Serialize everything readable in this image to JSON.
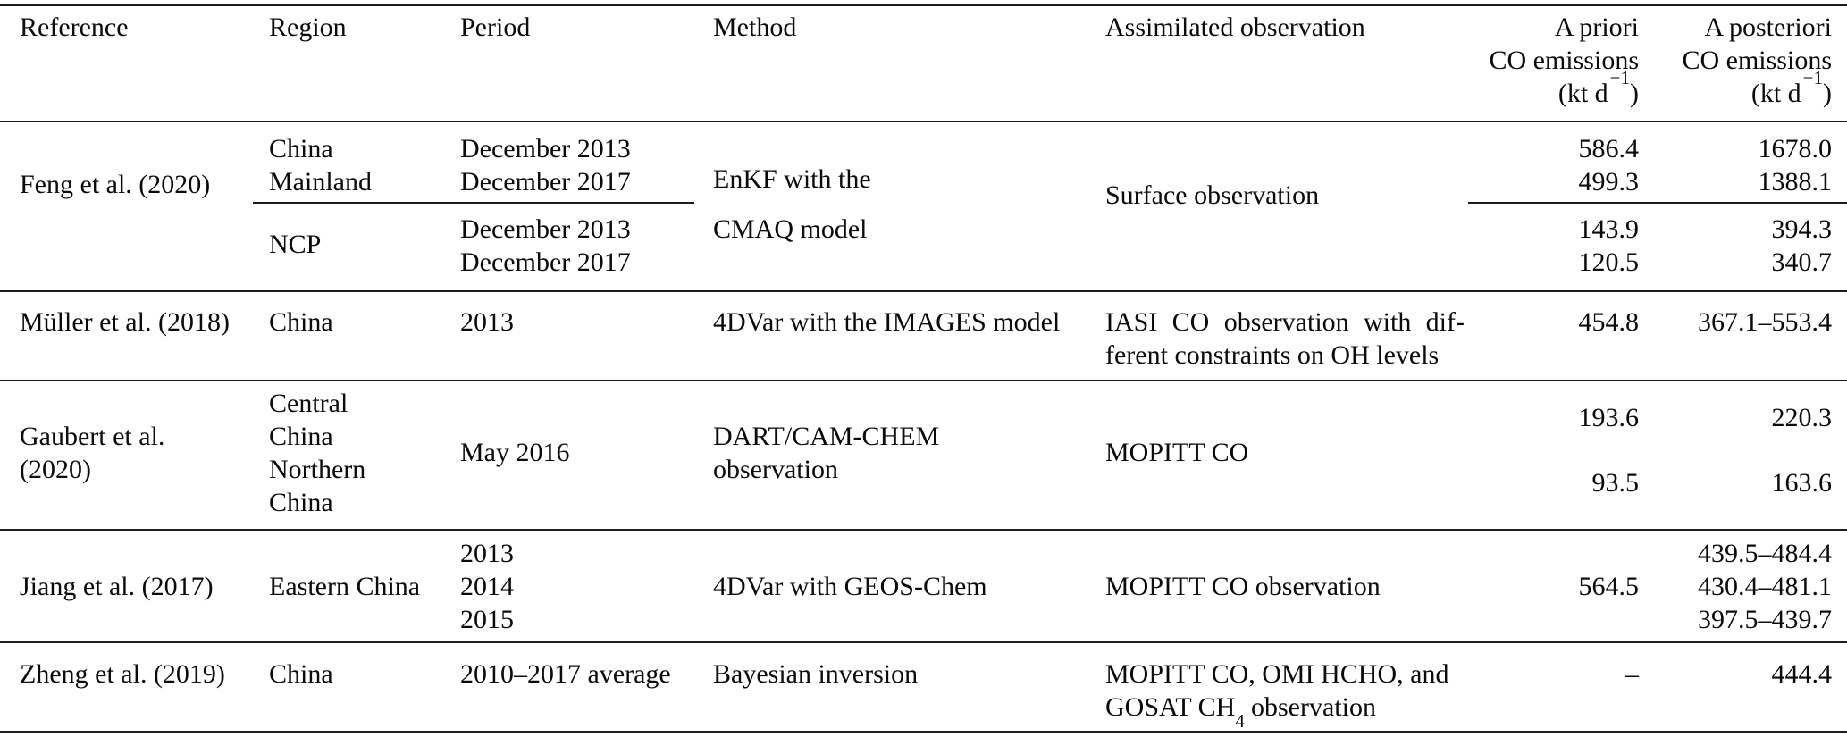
{
  "header": {
    "reference": "Reference",
    "region": "Region",
    "period": "Period",
    "method": "Method",
    "observation": "Assimilated observation",
    "apriori": [
      "A priori",
      "CO emissions"
    ],
    "aposteriori": [
      "A posteriori",
      "CO emissions"
    ],
    "unit_open": "(kt d",
    "unit_sup": "−1",
    "unit_close": ")"
  },
  "rows": {
    "feng": {
      "reference": "Feng et al. (2020)",
      "region_mainland": [
        "China",
        "Mainland"
      ],
      "region_ncp": "NCP",
      "period_mainland": [
        "December 2013",
        "December 2017"
      ],
      "period_ncp": [
        "December 2013",
        "December 2017"
      ],
      "method": [
        "EnKF with the",
        "CMAQ model"
      ],
      "observation": "Surface observation",
      "apriori_mainland": [
        "586.4",
        "499.3"
      ],
      "apriori_ncp": [
        "143.9",
        "120.5"
      ],
      "aposteriori_mainland": [
        "1678.0",
        "1388.1"
      ],
      "aposteriori_ncp": [
        "394.3",
        "340.7"
      ]
    },
    "muller": {
      "reference": "Müller et al. (2018)",
      "region": "China",
      "period": "2013",
      "method": "4DVar with the IMAGES model",
      "observation": [
        "IASI CO observation with dif-",
        "ferent constraints on OH levels"
      ],
      "apriori": "454.8",
      "aposteriori": "367.1–553.4"
    },
    "gaubert": {
      "reference": [
        "Gaubert et al.",
        "(2020)"
      ],
      "region": [
        "Central",
        "China",
        "Northern",
        "China"
      ],
      "period": "May 2016",
      "method": [
        "DART/CAM-CHEM",
        "observation"
      ],
      "observation": "MOPITT CO",
      "apriori_central": "193.6",
      "apriori_northern": "93.5",
      "aposteriori_central": "220.3",
      "aposteriori_northern": "163.6"
    },
    "jiang": {
      "reference": "Jiang et al. (2017)",
      "region": "Eastern China",
      "period": [
        "2013",
        "2014",
        "2015"
      ],
      "method": "4DVar with GEOS-Chem",
      "observation": "MOPITT CO observation",
      "apriori": "564.5",
      "aposteriori": [
        "439.5–484.4",
        "430.4–481.1",
        "397.5–439.7"
      ]
    },
    "zheng": {
      "reference": "Zheng et al. (2019)",
      "region": "China",
      "period": "2010–2017 average",
      "method": "Bayesian inversion",
      "observation_line1": "MOPITT CO, OMI HCHO, and",
      "observation_line2_pre": "GOSAT CH",
      "observation_line2_sub": "4",
      "observation_line2_post": "observation",
      "apriori": "–",
      "aposteriori": "444.4"
    }
  }
}
